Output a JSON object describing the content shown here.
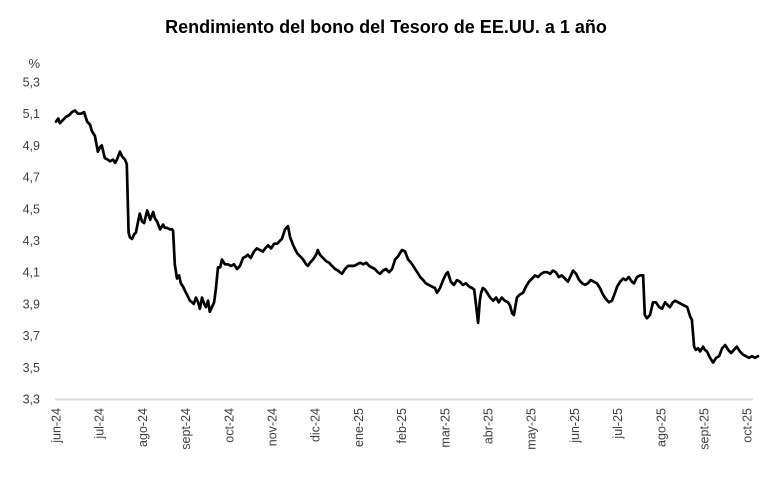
{
  "chart_data": {
    "type": "line",
    "title": "Rendimiento del bono del Tesoro de EE.UU. a 1 año",
    "subtitle": "",
    "xlabel": "",
    "ylabel": "%",
    "ylim": [
      3.3,
      5.3
    ],
    "y_tick_labels": [
      "5,3",
      "5,1",
      "4,9",
      "4,7",
      "4,5",
      "4,3",
      "4,1",
      "3,9",
      "3,7",
      "3,5",
      "3,3"
    ],
    "y_tick_values": [
      5.3,
      5.1,
      4.9,
      4.7,
      4.5,
      4.3,
      4.1,
      3.9,
      3.7,
      3.5,
      3.3
    ],
    "x_tick_labels": [
      "jun-24",
      "jul-24",
      "ago-24",
      "sept-24",
      "oct-24",
      "nov-24",
      "dic-24",
      "ene-25",
      "feb-25",
      "mar-25",
      "abr-25",
      "may-25",
      "jun-25",
      "jul-25",
      "ago-25",
      "sept-25",
      "oct-25"
    ],
    "grid": false,
    "legend_position": "none",
    "decimal_style": "comma",
    "colors": {
      "line": "#000000",
      "axis_line": "#d9d9d9",
      "title_text": "#000000",
      "tick_text": "#3f3f3f",
      "background": "#ffffff"
    },
    "series": [
      {
        "name": "Rendimiento del bono del Tesoro de EE.UU. a 1 año",
        "x_unit": "meses desde jun-24 (0 = jun-24, 16 = oct-25)",
        "y_unit": "%",
        "points": [
          [
            0,
            5.05
          ],
          [
            0.05,
            5.07
          ],
          [
            0.09,
            5.04
          ],
          [
            0.16,
            5.06
          ],
          [
            0.23,
            5.08
          ],
          [
            0.3,
            5.09
          ],
          [
            0.37,
            5.11
          ],
          [
            0.44,
            5.12
          ],
          [
            0.51,
            5.1
          ],
          [
            0.58,
            5.1
          ],
          [
            0.65,
            5.11
          ],
          [
            0.72,
            5.05
          ],
          [
            0.79,
            5.03
          ],
          [
            0.83,
            4.99
          ],
          [
            0.9,
            4.96
          ],
          [
            0.97,
            4.86
          ],
          [
            1.02,
            4.89
          ],
          [
            1.06,
            4.9
          ],
          [
            1.13,
            4.82
          ],
          [
            1.2,
            4.81
          ],
          [
            1.25,
            4.8
          ],
          [
            1.32,
            4.81
          ],
          [
            1.37,
            4.79
          ],
          [
            1.41,
            4.81
          ],
          [
            1.48,
            4.86
          ],
          [
            1.53,
            4.83
          ],
          [
            1.6,
            4.81
          ],
          [
            1.64,
            4.78
          ],
          [
            1.68,
            4.35
          ],
          [
            1.71,
            4.32
          ],
          [
            1.76,
            4.31
          ],
          [
            1.81,
            4.34
          ],
          [
            1.85,
            4.35
          ],
          [
            1.9,
            4.42
          ],
          [
            1.94,
            4.47
          ],
          [
            1.99,
            4.42
          ],
          [
            2.04,
            4.41
          ],
          [
            2.11,
            4.49
          ],
          [
            2.18,
            4.43
          ],
          [
            2.25,
            4.48
          ],
          [
            2.29,
            4.44
          ],
          [
            2.34,
            4.42
          ],
          [
            2.41,
            4.37
          ],
          [
            2.48,
            4.4
          ],
          [
            2.52,
            4.38
          ],
          [
            2.57,
            4.38
          ],
          [
            2.64,
            4.37
          ],
          [
            2.69,
            4.37
          ],
          [
            2.71,
            4.36
          ],
          [
            2.75,
            4.15
          ],
          [
            2.8,
            4.06
          ],
          [
            2.85,
            4.08
          ],
          [
            2.89,
            4.03
          ],
          [
            2.94,
            4.01
          ],
          [
            2.99,
            3.98
          ],
          [
            3.03,
            3.96
          ],
          [
            3.1,
            3.92
          ],
          [
            3.15,
            3.91
          ],
          [
            3.19,
            3.9
          ],
          [
            3.24,
            3.94
          ],
          [
            3.29,
            3.91
          ],
          [
            3.33,
            3.87
          ],
          [
            3.38,
            3.94
          ],
          [
            3.43,
            3.9
          ],
          [
            3.47,
            3.88
          ],
          [
            3.52,
            3.92
          ],
          [
            3.56,
            3.85
          ],
          [
            3.61,
            3.88
          ],
          [
            3.66,
            3.91
          ],
          [
            3.7,
            3.99
          ],
          [
            3.75,
            4.13
          ],
          [
            3.8,
            4.13
          ],
          [
            3.84,
            4.18
          ],
          [
            3.91,
            4.15
          ],
          [
            3.98,
            4.15
          ],
          [
            4.05,
            4.14
          ],
          [
            4.12,
            4.15
          ],
          [
            4.19,
            4.12
          ],
          [
            4.26,
            4.14
          ],
          [
            4.33,
            4.19
          ],
          [
            4.4,
            4.2
          ],
          [
            4.44,
            4.21
          ],
          [
            4.51,
            4.19
          ],
          [
            4.58,
            4.23
          ],
          [
            4.65,
            4.25
          ],
          [
            4.72,
            4.24
          ],
          [
            4.79,
            4.23
          ],
          [
            4.84,
            4.25
          ],
          [
            4.91,
            4.27
          ],
          [
            4.98,
            4.25
          ],
          [
            5.05,
            4.28
          ],
          [
            5.12,
            4.28
          ],
          [
            5.19,
            4.3
          ],
          [
            5.23,
            4.31
          ],
          [
            5.3,
            4.37
          ],
          [
            5.37,
            4.39
          ],
          [
            5.42,
            4.32
          ],
          [
            5.49,
            4.27
          ],
          [
            5.58,
            4.22
          ],
          [
            5.65,
            4.2
          ],
          [
            5.72,
            4.18
          ],
          [
            5.79,
            4.15
          ],
          [
            5.83,
            4.14
          ],
          [
            5.88,
            4.16
          ],
          [
            5.95,
            4.18
          ],
          [
            6.02,
            4.21
          ],
          [
            6.06,
            4.24
          ],
          [
            6.11,
            4.21
          ],
          [
            6.18,
            4.19
          ],
          [
            6.25,
            4.17
          ],
          [
            6.32,
            4.16
          ],
          [
            6.39,
            4.14
          ],
          [
            6.46,
            4.12
          ],
          [
            6.53,
            4.11
          ],
          [
            6.57,
            4.1
          ],
          [
            6.62,
            4.09
          ],
          [
            6.69,
            4.12
          ],
          [
            6.76,
            4.14
          ],
          [
            6.83,
            4.14
          ],
          [
            6.9,
            4.14
          ],
          [
            6.97,
            4.15
          ],
          [
            7.04,
            4.16
          ],
          [
            7.11,
            4.15
          ],
          [
            7.18,
            4.16
          ],
          [
            7.25,
            4.14
          ],
          [
            7.31,
            4.13
          ],
          [
            7.38,
            4.12
          ],
          [
            7.45,
            4.1
          ],
          [
            7.5,
            4.09
          ],
          [
            7.57,
            4.11
          ],
          [
            7.64,
            4.12
          ],
          [
            7.71,
            4.1
          ],
          [
            7.78,
            4.12
          ],
          [
            7.85,
            4.18
          ],
          [
            7.92,
            4.2
          ],
          [
            7.96,
            4.22
          ],
          [
            8.01,
            4.24
          ],
          [
            8.08,
            4.23
          ],
          [
            8.15,
            4.18
          ],
          [
            8.22,
            4.16
          ],
          [
            8.29,
            4.13
          ],
          [
            8.36,
            4.1
          ],
          [
            8.43,
            4.07
          ],
          [
            8.5,
            4.05
          ],
          [
            8.56,
            4.03
          ],
          [
            8.63,
            4.02
          ],
          [
            8.7,
            4.01
          ],
          [
            8.77,
            4
          ],
          [
            8.82,
            3.97
          ],
          [
            8.89,
            4
          ],
          [
            8.96,
            4.05
          ],
          [
            9.03,
            4.09
          ],
          [
            9.07,
            4.1
          ],
          [
            9.14,
            4.04
          ],
          [
            9.21,
            4.02
          ],
          [
            9.28,
            4.05
          ],
          [
            9.35,
            4.04
          ],
          [
            9.42,
            4.02
          ],
          [
            9.49,
            4.03
          ],
          [
            9.56,
            4.01
          ],
          [
            9.63,
            4
          ],
          [
            9.68,
            3.99
          ],
          [
            9.72,
            3.9
          ],
          [
            9.77,
            3.78
          ],
          [
            9.81,
            3.92
          ],
          [
            9.84,
            3.97
          ],
          [
            9.88,
            4
          ],
          [
            9.93,
            3.99
          ],
          [
            9.98,
            3.97
          ],
          [
            10.05,
            3.94
          ],
          [
            10.12,
            3.92
          ],
          [
            10.19,
            3.94
          ],
          [
            10.25,
            3.91
          ],
          [
            10.32,
            3.94
          ],
          [
            10.39,
            3.92
          ],
          [
            10.46,
            3.91
          ],
          [
            10.51,
            3.89
          ],
          [
            10.56,
            3.84
          ],
          [
            10.6,
            3.83
          ],
          [
            10.67,
            3.94
          ],
          [
            10.74,
            3.96
          ],
          [
            10.81,
            3.97
          ],
          [
            10.88,
            4.01
          ],
          [
            10.95,
            4.04
          ],
          [
            11.02,
            4.06
          ],
          [
            11.09,
            4.08
          ],
          [
            11.16,
            4.07
          ],
          [
            11.23,
            4.09
          ],
          [
            11.3,
            4.1
          ],
          [
            11.37,
            4.1
          ],
          [
            11.44,
            4.09
          ],
          [
            11.5,
            4.11
          ],
          [
            11.57,
            4.1
          ],
          [
            11.64,
            4.07
          ],
          [
            11.71,
            4.08
          ],
          [
            11.78,
            4.06
          ],
          [
            11.85,
            4.04
          ],
          [
            11.92,
            4.08
          ],
          [
            11.97,
            4.11
          ],
          [
            12.04,
            4.09
          ],
          [
            12.11,
            4.05
          ],
          [
            12.18,
            4.03
          ],
          [
            12.25,
            4.02
          ],
          [
            12.31,
            4.03
          ],
          [
            12.38,
            4.05
          ],
          [
            12.45,
            4.04
          ],
          [
            12.52,
            4.03
          ],
          [
            12.59,
            4
          ],
          [
            12.66,
            3.96
          ],
          [
            12.73,
            3.93
          ],
          [
            12.8,
            3.91
          ],
          [
            12.87,
            3.92
          ],
          [
            12.94,
            3.97
          ],
          [
            12.99,
            4.01
          ],
          [
            13.06,
            4.04
          ],
          [
            13.13,
            4.06
          ],
          [
            13.19,
            4.05
          ],
          [
            13.26,
            4.07
          ],
          [
            13.33,
            4.04
          ],
          [
            13.38,
            4.03
          ],
          [
            13.45,
            4.07
          ],
          [
            13.52,
            4.08
          ],
          [
            13.59,
            4.08
          ],
          [
            13.63,
            3.83
          ],
          [
            13.68,
            3.81
          ],
          [
            13.75,
            3.83
          ],
          [
            13.82,
            3.91
          ],
          [
            13.89,
            3.91
          ],
          [
            13.96,
            3.88
          ],
          [
            14.03,
            3.87
          ],
          [
            14.1,
            3.91
          ],
          [
            14.17,
            3.89
          ],
          [
            14.21,
            3.88
          ],
          [
            14.28,
            3.91
          ],
          [
            14.33,
            3.92
          ],
          [
            14.4,
            3.91
          ],
          [
            14.47,
            3.9
          ],
          [
            14.54,
            3.89
          ],
          [
            14.61,
            3.88
          ],
          [
            14.68,
            3.82
          ],
          [
            14.72,
            3.8
          ],
          [
            14.77,
            3.63
          ],
          [
            14.81,
            3.61
          ],
          [
            14.86,
            3.62
          ],
          [
            14.91,
            3.6
          ],
          [
            14.98,
            3.63
          ],
          [
            15.02,
            3.61
          ],
          [
            15.07,
            3.6
          ],
          [
            15.14,
            3.56
          ],
          [
            15.21,
            3.53
          ],
          [
            15.28,
            3.56
          ],
          [
            15.35,
            3.57
          ],
          [
            15.42,
            3.62
          ],
          [
            15.49,
            3.64
          ],
          [
            15.56,
            3.61
          ],
          [
            15.63,
            3.59
          ],
          [
            15.69,
            3.61
          ],
          [
            15.76,
            3.63
          ],
          [
            15.83,
            3.6
          ],
          [
            15.9,
            3.58
          ],
          [
            15.97,
            3.57
          ],
          [
            16.04,
            3.56
          ],
          [
            16.11,
            3.57
          ],
          [
            16.18,
            3.56
          ],
          [
            16.25,
            3.57
          ]
        ]
      }
    ]
  }
}
